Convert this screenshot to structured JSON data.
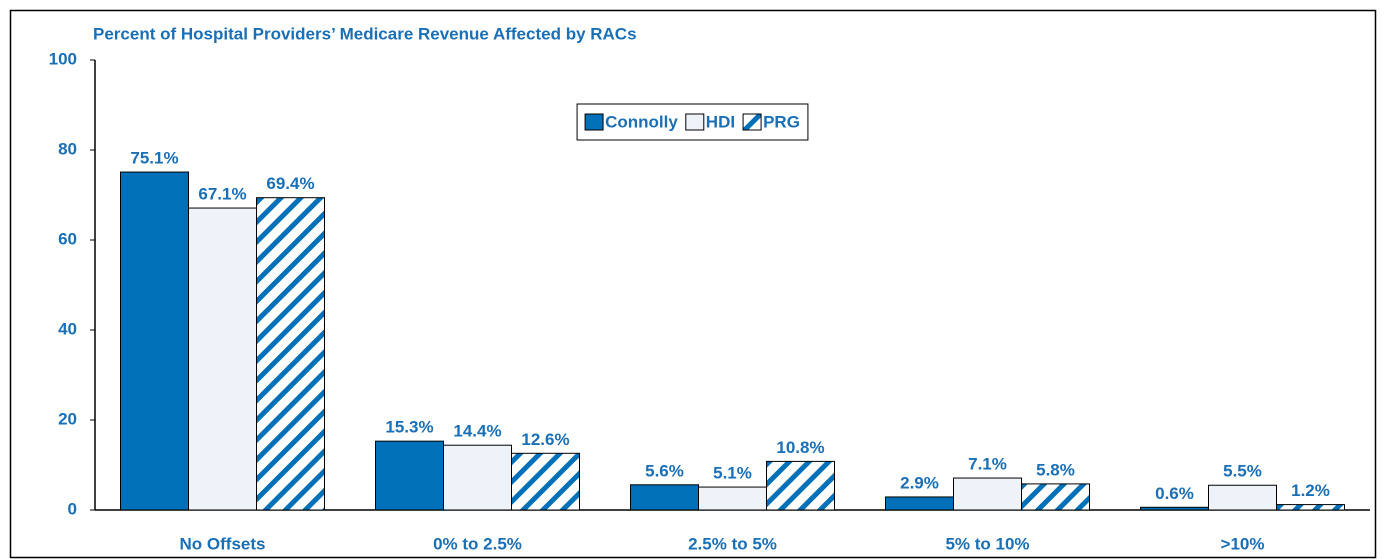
{
  "chart_data": {
    "type": "bar",
    "title": "Percent of Hospital Providers’ Medicare Revenue Affected by RACs",
    "categories": [
      "No Offsets",
      "0% to 2.5%",
      "2.5% to 5%",
      "5% to 10%",
      ">10%"
    ],
    "series": [
      {
        "name": "Connolly",
        "color": "#0070b8",
        "values": [
          75.1,
          15.3,
          5.6,
          2.9,
          0.6
        ],
        "value_labels": [
          "75.1%",
          "15.3%",
          "5.6%",
          "2.9%",
          "0.6%"
        ]
      },
      {
        "name": "HDI",
        "color": "#eef2f9",
        "values": [
          67.1,
          14.4,
          5.1,
          7.1,
          5.5
        ],
        "value_labels": [
          "67.1%",
          "14.4%",
          "5.1%",
          "7.1%",
          "5.5%"
        ]
      },
      {
        "name": "PRG",
        "color": "#0070b8",
        "pattern": "hatch",
        "values": [
          69.4,
          12.6,
          10.8,
          5.8,
          1.2
        ],
        "value_labels": [
          "69.4%",
          "12.6%",
          "10.8%",
          "5.8%",
          "1.2%"
        ]
      }
    ],
    "ylim": [
      0,
      100
    ],
    "yticks": [
      0,
      20,
      40,
      60,
      80,
      100
    ],
    "grid": false,
    "legend": "top"
  }
}
